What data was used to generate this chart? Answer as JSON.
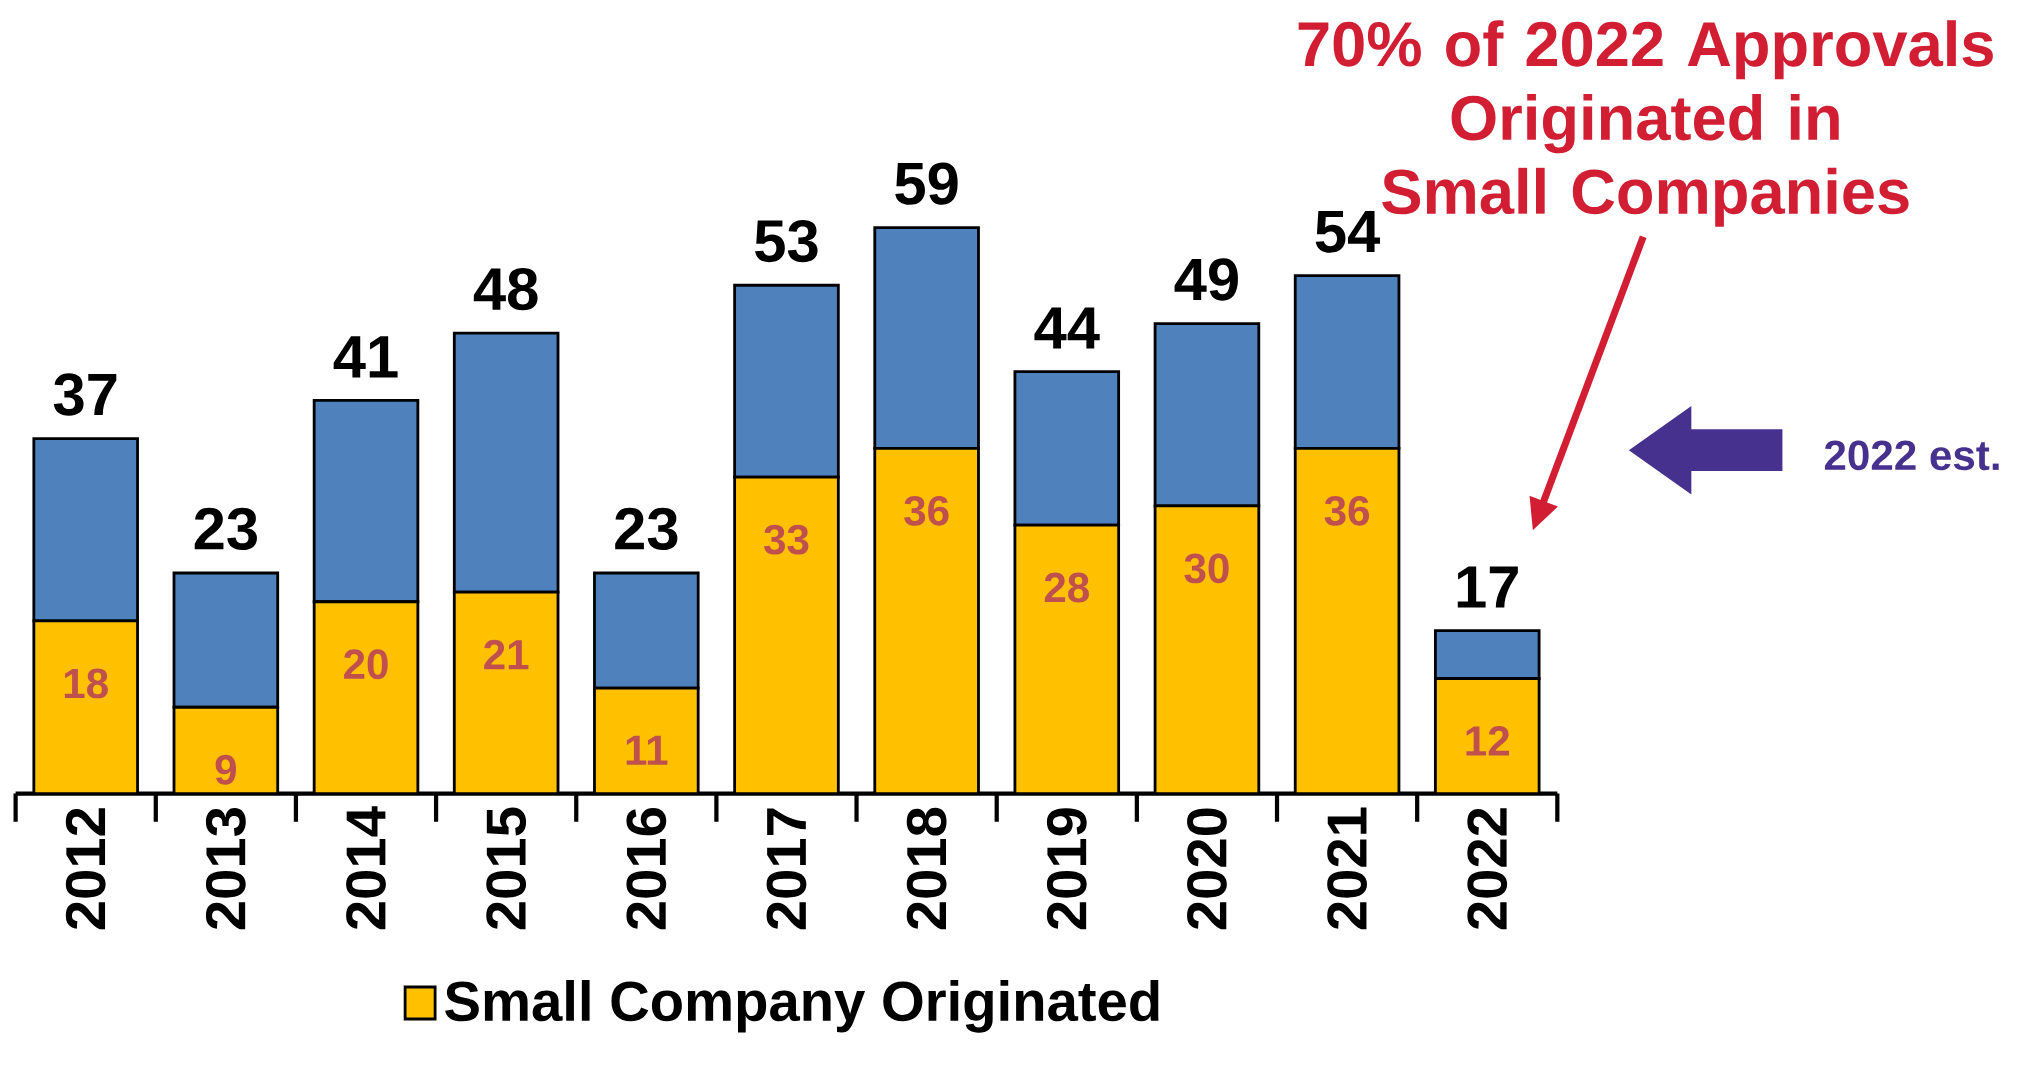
{
  "chart_data": {
    "type": "bar",
    "stacked": true,
    "categories": [
      "2012",
      "2013",
      "2014",
      "2015",
      "2016",
      "2017",
      "2018",
      "2019",
      "2020",
      "2021",
      "2022"
    ],
    "series": [
      {
        "name": "Small Company Originated",
        "color": "#ffc000",
        "values": [
          18,
          9,
          20,
          21,
          11,
          33,
          36,
          28,
          30,
          36,
          12
        ],
        "value_labels": [
          "18",
          "9",
          "20",
          "21",
          "11",
          "33",
          "36",
          "28",
          "30",
          "36",
          "12"
        ]
      },
      {
        "color": "#4f81bd",
        "values": [
          19,
          14,
          21,
          27,
          12,
          20,
          23,
          16,
          19,
          18,
          5
        ]
      }
    ],
    "totals": [
      "37",
      "23",
      "41",
      "48",
      "23",
      "53",
      "59",
      "44",
      "49",
      "54",
      "17"
    ],
    "ylim": [
      0,
      59
    ],
    "tick_labels": "x",
    "legend": "bottom",
    "annotations": [
      "70% of 2022 Approvals Originated in Small Companies",
      "2022 est."
    ]
  }
}
